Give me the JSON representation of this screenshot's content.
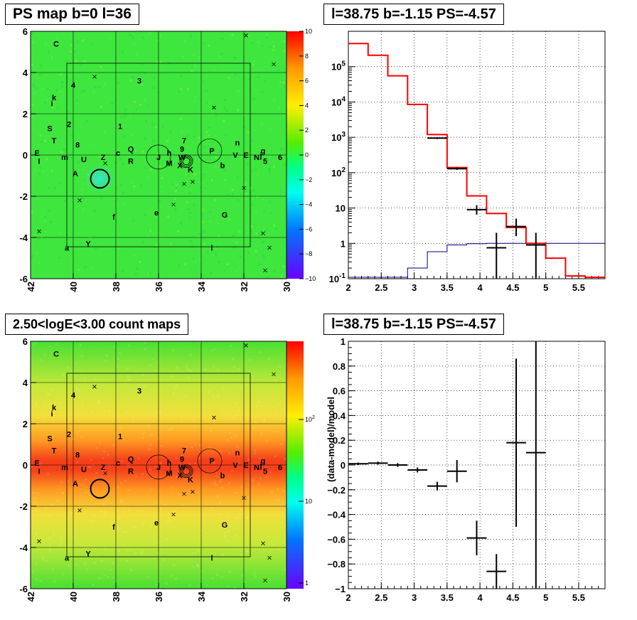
{
  "chart_data": [
    {
      "type": "heatmap",
      "title": "PS map b=0 l=36",
      "xlim": [
        42,
        30
      ],
      "ylim": [
        -6,
        6
      ],
      "x_ticks": [
        "42",
        "40",
        "38",
        "36",
        "34",
        "32",
        "30"
      ],
      "y_ticks": [
        "-6",
        "-4",
        "-2",
        "0",
        "2",
        "4",
        "6"
      ],
      "colorbar": {
        "min": -10,
        "max": 10,
        "ticks": [
          "10",
          "8",
          "6",
          "4",
          "2",
          "0",
          "−2",
          "−4",
          "−6",
          "−8",
          "−10"
        ]
      },
      "colors": {
        "background": "#3ee63e",
        "colorbar_top": "#ff0000",
        "colorbar_bottom": "#6a00ff"
      },
      "hot_spot": {
        "label": "J",
        "l": 38.75,
        "b": -1.15,
        "colour": "#33e6d0"
      },
      "sources": [
        {
          "label": "C",
          "l": 40.8,
          "b": 5.4
        },
        {
          "label": "4",
          "l": 40.0,
          "b": 3.4
        },
        {
          "label": "3",
          "l": 36.9,
          "b": 3.6
        },
        {
          "label": "k",
          "l": 40.9,
          "b": 2.8
        },
        {
          "label": "i",
          "l": 41.0,
          "b": 2.5
        },
        {
          "label": "2",
          "l": 40.2,
          "b": 1.5
        },
        {
          "label": "1",
          "l": 37.8,
          "b": 1.4
        },
        {
          "label": "S",
          "l": 41.1,
          "b": 1.3
        },
        {
          "label": "T",
          "l": 40.9,
          "b": 0.7
        },
        {
          "label": "8",
          "l": 39.8,
          "b": 0.5
        },
        {
          "label": "E",
          "l": 41.7,
          "b": 0.1
        },
        {
          "label": "I",
          "l": 41.6,
          "b": -0.3
        },
        {
          "label": "m",
          "l": 40.4,
          "b": -0.1
        },
        {
          "label": "U",
          "l": 39.5,
          "b": -0.2
        },
        {
          "label": "Z",
          "l": 38.6,
          "b": -0.1
        },
        {
          "label": "c",
          "l": 37.9,
          "b": 0.1
        },
        {
          "label": "Q",
          "l": 37.3,
          "b": 0.3
        },
        {
          "label": "R",
          "l": 37.3,
          "b": -0.3
        },
        {
          "label": "J",
          "l": 36.0,
          "b": -0.1
        },
        {
          "label": "h",
          "l": 35.5,
          "b": 0.1
        },
        {
          "label": "M",
          "l": 35.5,
          "b": -0.4
        },
        {
          "label": "7",
          "l": 34.8,
          "b": 0.7
        },
        {
          "label": "9",
          "l": 34.9,
          "b": 0.3
        },
        {
          "label": "W",
          "l": 34.9,
          "b": -0.1
        },
        {
          "label": "X",
          "l": 35.0,
          "b": -0.5
        },
        {
          "label": "K",
          "l": 34.5,
          "b": -0.7
        },
        {
          "label": "P",
          "l": 33.5,
          "b": 0.2
        },
        {
          "label": "b",
          "l": 33.0,
          "b": -0.5
        },
        {
          "label": "n",
          "l": 32.3,
          "b": 0.6
        },
        {
          "label": "V",
          "l": 32.4,
          "b": 0.0
        },
        {
          "label": "E",
          "l": 31.9,
          "b": 0.0
        },
        {
          "label": "N",
          "l": 31.4,
          "b": -0.1
        },
        {
          "label": "j",
          "l": 31.2,
          "b": 0.0
        },
        {
          "label": "g",
          "l": 31.1,
          "b": 0.2
        },
        {
          "label": "5",
          "l": 31.0,
          "b": -0.3
        },
        {
          "label": "6",
          "l": 30.3,
          "b": -0.1
        },
        {
          "label": "A",
          "l": 39.9,
          "b": -0.9
        },
        {
          "label": "f",
          "l": 38.1,
          "b": -3.0
        },
        {
          "label": "e",
          "l": 36.1,
          "b": -2.8
        },
        {
          "label": "G",
          "l": 32.9,
          "b": -2.9
        },
        {
          "label": "a",
          "l": 40.3,
          "b": -4.5
        },
        {
          "label": "Y",
          "l": 39.3,
          "b": -4.3
        },
        {
          "label": "l",
          "l": 33.5,
          "b": -4.5
        }
      ]
    },
    {
      "type": "line",
      "title": "l=38.75 b=-1.15 PS=-4.57",
      "xlim": [
        2,
        5.9
      ],
      "ylim": [
        0.1,
        1000000
      ],
      "log_y": true,
      "x_ticks": [
        "2",
        "2.5",
        "3",
        "3.5",
        "4",
        "4.5",
        "5",
        "5.5"
      ],
      "y_ticks": [
        "10^-1",
        "1",
        "10",
        "10^2",
        "10^3",
        "10^4",
        "10^5"
      ],
      "colors": {
        "model": "#ff0000",
        "point_source": "#000080",
        "data": "#000000"
      },
      "bin_edges": [
        2.0,
        2.3,
        2.6,
        2.9,
        3.2,
        3.5,
        3.8,
        4.1,
        4.4,
        4.7,
        5.0,
        5.3,
        5.6,
        5.9
      ],
      "series": [
        {
          "values": [
            450000,
            210000,
            55000,
            8500,
            1200,
            140,
            22,
            7,
            2.8,
            1.0,
            0.38,
            0.12,
            0.11
          ]
        },
        {
          "values": [
            0.11,
            0.11,
            0.11,
            0.2,
            0.58,
            0.9,
            0.98,
            1.0,
            1.0,
            1.0,
            1.0,
            1.0,
            1.0
          ]
        }
      ],
      "data_points": [
        {
          "x": 3.35,
          "y": 950,
          "xerr": 0.15,
          "ylo": 900,
          "yhi": 1000
        },
        {
          "x": 3.65,
          "y": 130,
          "xerr": 0.15,
          "ylo": 120,
          "yhi": 140
        },
        {
          "x": 3.95,
          "y": 9,
          "xerr": 0.15,
          "ylo": 6.5,
          "yhi": 12
        },
        {
          "x": 4.25,
          "y": 0.75,
          "xerr": 0.15,
          "ylo": 0.1,
          "yhi": 2.0
        },
        {
          "x": 4.55,
          "y": 3.0,
          "xerr": 0.15,
          "ylo": 1.6,
          "yhi": 5.0
        },
        {
          "x": 4.85,
          "y": 0.9,
          "xerr": 0.15,
          "ylo": 0.1,
          "yhi": 2.0
        }
      ]
    },
    {
      "type": "heatmap",
      "title": "2.50<logE<3.00 count maps",
      "xlim": [
        42,
        30
      ],
      "ylim": [
        -6,
        6
      ],
      "x_ticks": [
        "42",
        "40",
        "38",
        "36",
        "34",
        "32",
        "30"
      ],
      "y_ticks": [
        "-6",
        "-4",
        "-2",
        "0",
        "2",
        "4",
        "6"
      ],
      "colorbar": {
        "log": true,
        "ticks": [
          "10^2",
          "10",
          "1"
        ]
      },
      "colors": {
        "band_outer": "#5ee63a",
        "band_mid": "#f0e640",
        "band_inner": "#ff8a1e",
        "band_core": "#f23a12"
      },
      "hot_spot": {
        "label": "J",
        "l": 38.75,
        "b": -1.15
      },
      "sources_same_as_first": true
    },
    {
      "type": "scatter",
      "title": "l=38.75 b=-1.15 PS=-4.57",
      "ylabel": "(data-model)/model",
      "xlim": [
        2,
        5.9
      ],
      "ylim": [
        -1,
        1
      ],
      "x_ticks": [
        "2",
        "2.5",
        "3",
        "3.5",
        "4",
        "4.5",
        "5",
        "5.5"
      ],
      "y_ticks": [
        "−1",
        "−0.8",
        "−0.6",
        "−0.4",
        "−0.2",
        "0",
        "0.2",
        "0.4",
        "0.6",
        "0.8",
        "1"
      ],
      "points": [
        {
          "x": 2.15,
          "y": 0.01,
          "xerr": 0.15,
          "yerr": 0.01
        },
        {
          "x": 2.45,
          "y": 0.015,
          "xerr": 0.15,
          "yerr": 0.012
        },
        {
          "x": 2.75,
          "y": 0.0,
          "xerr": 0.15,
          "yerr": 0.015
        },
        {
          "x": 3.05,
          "y": -0.04,
          "xerr": 0.15,
          "yerr": 0.02
        },
        {
          "x": 3.35,
          "y": -0.17,
          "xerr": 0.15,
          "yerr": 0.035
        },
        {
          "x": 3.65,
          "y": -0.05,
          "xerr": 0.15,
          "yerr": 0.09
        },
        {
          "x": 3.95,
          "y": -0.59,
          "xerr": 0.15,
          "yerr": 0.14
        },
        {
          "x": 4.25,
          "y": -0.86,
          "xerr": 0.15,
          "yerr": 0.14
        },
        {
          "x": 4.55,
          "y": 0.18,
          "xerr": 0.15,
          "yerr": 0.68
        },
        {
          "x": 4.85,
          "y": 0.1,
          "xerr": 0.15,
          "yerr": 1.1
        }
      ]
    }
  ]
}
